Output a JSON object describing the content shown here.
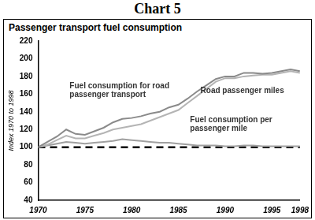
{
  "chart_data": {
    "type": "line",
    "title": "Chart 5",
    "subtitle": "Passenger transport fuel consumption",
    "y_label": "Index 1970 to 1998",
    "x": [
      1970,
      1971,
      1972,
      1973,
      1974,
      1975,
      1976,
      1977,
      1978,
      1979,
      1980,
      1981,
      1982,
      1983,
      1984,
      1985,
      1986,
      1987,
      1988,
      1989,
      1990,
      1991,
      1992,
      1993,
      1994,
      1995,
      1996,
      1997,
      1998
    ],
    "series": [
      {
        "name": "Fuel consumption for road passenger transport",
        "color": "#8a8a8a",
        "values": [
          100,
          106,
          112,
          120,
          115,
          114,
          118,
          122,
          128,
          132,
          133,
          135,
          138,
          140,
          145,
          148,
          155,
          163,
          170,
          177,
          180,
          180,
          184,
          184,
          183,
          184,
          186,
          188,
          186
        ]
      },
      {
        "name": "Road passenger miles",
        "color": "#b4b4b4",
        "values": [
          100,
          103,
          108,
          113,
          110,
          110,
          113,
          116,
          120,
          122,
          124,
          126,
          130,
          134,
          138,
          142,
          150,
          158,
          166,
          174,
          178,
          178,
          180,
          181,
          182,
          182,
          184,
          186,
          184
        ]
      },
      {
        "name": "Fuel consumption per passenger mile",
        "color": "#a0a0a0",
        "values": [
          100,
          102,
          104,
          106,
          105,
          104,
          105,
          106,
          107,
          109,
          108,
          107,
          106,
          105,
          105,
          104,
          103,
          102,
          102,
          102,
          101,
          101,
          102,
          102,
          101,
          101,
          101,
          101,
          101
        ]
      },
      {
        "color": "#000000",
        "line_style": "dashed",
        "values": [
          100,
          100,
          100,
          100,
          100,
          100,
          100,
          100,
          100,
          100,
          100,
          100,
          100,
          100,
          100,
          100,
          100,
          100,
          100,
          100,
          100,
          100,
          100,
          100,
          100,
          100,
          100,
          100,
          100
        ]
      }
    ],
    "xlim": [
      1970,
      1998
    ],
    "xticks": [
      1970,
      1975,
      1980,
      1985,
      1990,
      1995,
      1998
    ],
    "ylim": [
      40,
      220
    ],
    "yticks": [
      40,
      60,
      80,
      100,
      120,
      140,
      160,
      180,
      200,
      220
    ],
    "grid": false
  }
}
